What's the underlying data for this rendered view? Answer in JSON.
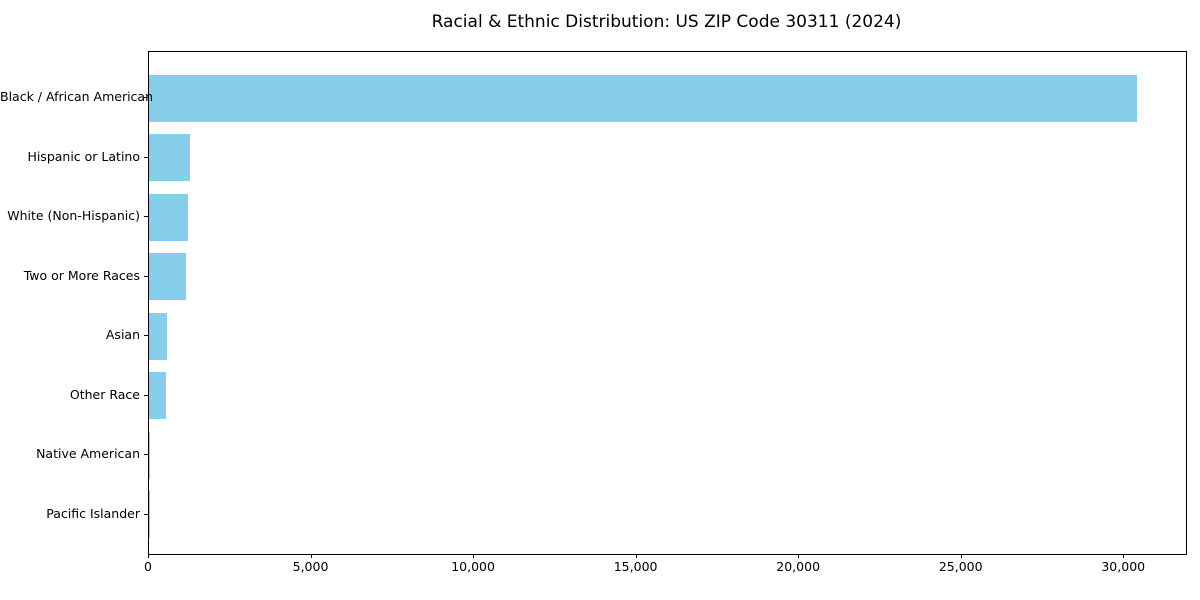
{
  "chart_data": {
    "type": "bar",
    "orientation": "horizontal",
    "title": "Racial & Ethnic Distribution: US ZIP Code 30311 (2024)",
    "categories": [
      "Black / African American",
      "Hispanic or Latino",
      "White (Non-Hispanic)",
      "Two or More Races",
      "Asian",
      "Other Race",
      "Native American",
      "Pacific Islander"
    ],
    "values": [
      30400,
      1260,
      1190,
      1150,
      550,
      520,
      40,
      15
    ],
    "xlabel": "",
    "ylabel": "",
    "x_ticks": [
      0,
      5000,
      10000,
      15000,
      20000,
      25000,
      30000
    ],
    "x_tick_labels": [
      "0",
      "5,000",
      "10,000",
      "15,000",
      "20,000",
      "25,000",
      "30,000"
    ],
    "xlim": [
      0,
      31900
    ],
    "grid": false,
    "legend": "none",
    "bar_color": "#87CEEB",
    "axis_color": "#000000",
    "text_color": "#000000",
    "background_color": "#FFFFFF"
  }
}
